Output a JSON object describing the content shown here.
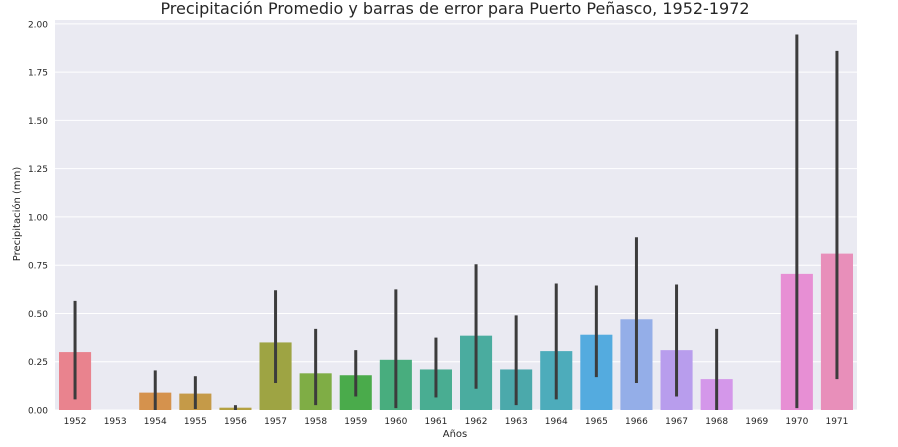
{
  "chart_data": {
    "type": "bar",
    "title": "Precipitación Promedio y barras de error para Puerto Peñasco, 1952-1972",
    "xlabel": "Años",
    "ylabel": "Precipitación (mm)",
    "ylim": [
      0,
      2.02
    ],
    "yticks": [
      "0.00",
      "0.25",
      "0.50",
      "0.75",
      "1.00",
      "1.25",
      "1.50",
      "1.75",
      "2.00"
    ],
    "grid": true,
    "legend": "none",
    "background": "#eaeaf2",
    "categories": [
      "1952",
      "1953",
      "1954",
      "1955",
      "1956",
      "1957",
      "1958",
      "1959",
      "1960",
      "1961",
      "1962",
      "1963",
      "1964",
      "1965",
      "1966",
      "1967",
      "1968",
      "1969",
      "1970",
      "1971"
    ],
    "values": [
      0.3,
      0.0,
      0.09,
      0.085,
      0.012,
      0.35,
      0.19,
      0.18,
      0.26,
      0.21,
      0.385,
      0.21,
      0.305,
      0.39,
      0.47,
      0.31,
      0.16,
      0.0,
      0.705,
      0.81
    ],
    "error_low": [
      0.055,
      0.0,
      0.0,
      0.005,
      0.0,
      0.14,
      0.025,
      0.07,
      0.01,
      0.065,
      0.11,
      0.025,
      0.055,
      0.17,
      0.14,
      0.07,
      0.0,
      0.0,
      0.01,
      0.16
    ],
    "error_high": [
      0.565,
      0.0,
      0.205,
      0.175,
      0.025,
      0.62,
      0.42,
      0.31,
      0.625,
      0.375,
      0.755,
      0.49,
      0.655,
      0.645,
      0.895,
      0.65,
      0.42,
      0.0,
      1.945,
      1.86
    ],
    "colors": [
      "#e9838e",
      "#e48f70",
      "#d5924d",
      "#c59a48",
      "#b4a141",
      "#9ea443",
      "#7fad45",
      "#4aab4b",
      "#48ad7e",
      "#49ad92",
      "#4aac9f",
      "#4ba9ab",
      "#4dacbb",
      "#54abdf",
      "#94aee8",
      "#b89ded",
      "#d497ea",
      "#e48fdf",
      "#e78fd4",
      "#e88fba"
    ]
  }
}
